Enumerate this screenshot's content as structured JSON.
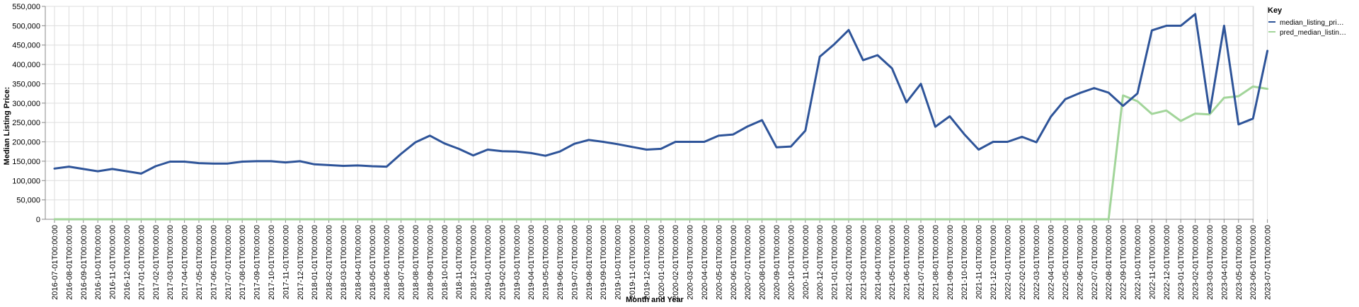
{
  "chart_data": {
    "type": "line",
    "xlabel": "Month and Year",
    "ylabel": "Median Listing Price:",
    "ylim": [
      0,
      550000
    ],
    "yticks": [
      "0",
      "50,000",
      "100,000",
      "150,000",
      "200,000",
      "250,000",
      "300,000",
      "350,000",
      "400,000",
      "450,000",
      "500,000",
      "550,000"
    ],
    "ytick_values": [
      0,
      50000,
      100000,
      150000,
      200000,
      250000,
      300000,
      350000,
      400000,
      450000,
      500000,
      550000
    ],
    "grid": true,
    "legend": {
      "title": "Key",
      "placement": "right",
      "entries": [
        "median_listing_pri…",
        "pred_median_listin…"
      ]
    },
    "categories": [
      "2016-07-01T00:00:00",
      "2016-08-01T00:00:00",
      "2016-09-01T00:00:00",
      "2016-10-01T00:00:00",
      "2016-11-01T00:00:00",
      "2016-12-01T00:00:00",
      "2017-01-01T00:00:00",
      "2017-02-01T00:00:00",
      "2017-03-01T00:00:00",
      "2017-04-01T00:00:00",
      "2017-05-01T00:00:00",
      "2017-06-01T00:00:00",
      "2017-07-01T00:00:00",
      "2017-08-01T00:00:00",
      "2017-09-01T00:00:00",
      "2017-10-01T00:00:00",
      "2017-11-01T00:00:00",
      "2017-12-01T00:00:00",
      "2018-01-01T00:00:00",
      "2018-02-01T00:00:00",
      "2018-03-01T00:00:00",
      "2018-04-01T00:00:00",
      "2018-05-01T00:00:00",
      "2018-06-01T00:00:00",
      "2018-07-01T00:00:00",
      "2018-08-01T00:00:00",
      "2018-09-01T00:00:00",
      "2018-10-01T00:00:00",
      "2018-11-01T00:00:00",
      "2018-12-01T00:00:00",
      "2019-01-01T00:00:00",
      "2019-02-01T00:00:00",
      "2019-03-01T00:00:00",
      "2019-04-01T00:00:00",
      "2019-05-01T00:00:00",
      "2019-06-01T00:00:00",
      "2019-07-01T00:00:00",
      "2019-08-01T00:00:00",
      "2019-09-01T00:00:00",
      "2019-10-01T00:00:00",
      "2019-11-01T00:00:00",
      "2019-12-01T00:00:00",
      "2020-01-01T00:00:00",
      "2020-02-01T00:00:00",
      "2020-03-01T00:00:00",
      "2020-04-01T00:00:00",
      "2020-05-01T00:00:00",
      "2020-06-01T00:00:00",
      "2020-07-01T00:00:00",
      "2020-08-01T00:00:00",
      "2020-09-01T00:00:00",
      "2020-10-01T00:00:00",
      "2020-11-01T00:00:00",
      "2020-12-01T00:00:00",
      "2021-01-01T00:00:00",
      "2021-02-01T00:00:00",
      "2021-03-01T00:00:00",
      "2021-04-01T00:00:00",
      "2021-05-01T00:00:00",
      "2021-06-01T00:00:00",
      "2021-07-01T00:00:00",
      "2021-08-01T00:00:00",
      "2021-09-01T00:00:00",
      "2021-10-01T00:00:00",
      "2021-11-01T00:00:00",
      "2021-12-01T00:00:00",
      "2022-01-01T00:00:00",
      "2022-02-01T00:00:00",
      "2022-03-01T00:00:00",
      "2022-04-01T00:00:00",
      "2022-05-01T00:00:00",
      "2022-06-01T00:00:00",
      "2022-07-01T00:00:00",
      "2022-08-01T00:00:00",
      "2022-09-01T00:00:00",
      "2022-10-01T00:00:00",
      "2022-11-01T00:00:00",
      "2022-12-01T00:00:00",
      "2023-01-01T00:00:00",
      "2023-02-01T00:00:00",
      "2023-03-01T00:00:00",
      "2023-04-01T00:00:00",
      "2023-05-01T00:00:00",
      "2023-06-01T00:00:00",
      "2023-07-01T00:00:00"
    ],
    "series": [
      {
        "name": "median_listing_price",
        "color": "#2e5499",
        "values": [
          131000,
          136000,
          130000,
          124000,
          130000,
          124000,
          118000,
          137000,
          149000,
          149000,
          145000,
          144000,
          144000,
          149000,
          150000,
          150000,
          147000,
          150000,
          142000,
          140000,
          138000,
          139000,
          137000,
          136000,
          169000,
          199000,
          216000,
          196000,
          182000,
          165000,
          180000,
          176000,
          175000,
          171000,
          164000,
          175000,
          195000,
          205000,
          200000,
          194000,
          187000,
          180000,
          182000,
          200000,
          200000,
          200000,
          216000,
          219000,
          240000,
          256000,
          186000,
          188000,
          229000,
          420000,
          452000,
          489000,
          411000,
          424000,
          390000,
          302000,
          350000,
          239000,
          266000,
          220000,
          180000,
          200000,
          200000,
          213000,
          199000,
          265000,
          310000,
          326000,
          339000,
          327000,
          293000,
          325000,
          488000,
          500000,
          500000,
          530000,
          275000,
          500000,
          245000,
          260000,
          435000
        ]
      },
      {
        "name": "pred_median_listing_price",
        "color": "#a2d59a",
        "values": [
          0,
          0,
          0,
          0,
          0,
          0,
          0,
          0,
          0,
          0,
          0,
          0,
          0,
          0,
          0,
          0,
          0,
          0,
          0,
          0,
          0,
          0,
          0,
          0,
          0,
          0,
          0,
          0,
          0,
          0,
          0,
          0,
          0,
          0,
          0,
          0,
          0,
          0,
          0,
          0,
          0,
          0,
          0,
          0,
          0,
          0,
          0,
          0,
          0,
          0,
          0,
          0,
          0,
          0,
          0,
          0,
          0,
          0,
          0,
          0,
          0,
          0,
          0,
          0,
          0,
          0,
          0,
          0,
          0,
          0,
          0,
          0,
          0,
          0,
          320000,
          305000,
          272000,
          281000,
          254000,
          273000,
          271000,
          314000,
          318000,
          343000,
          337000
        ]
      }
    ]
  }
}
